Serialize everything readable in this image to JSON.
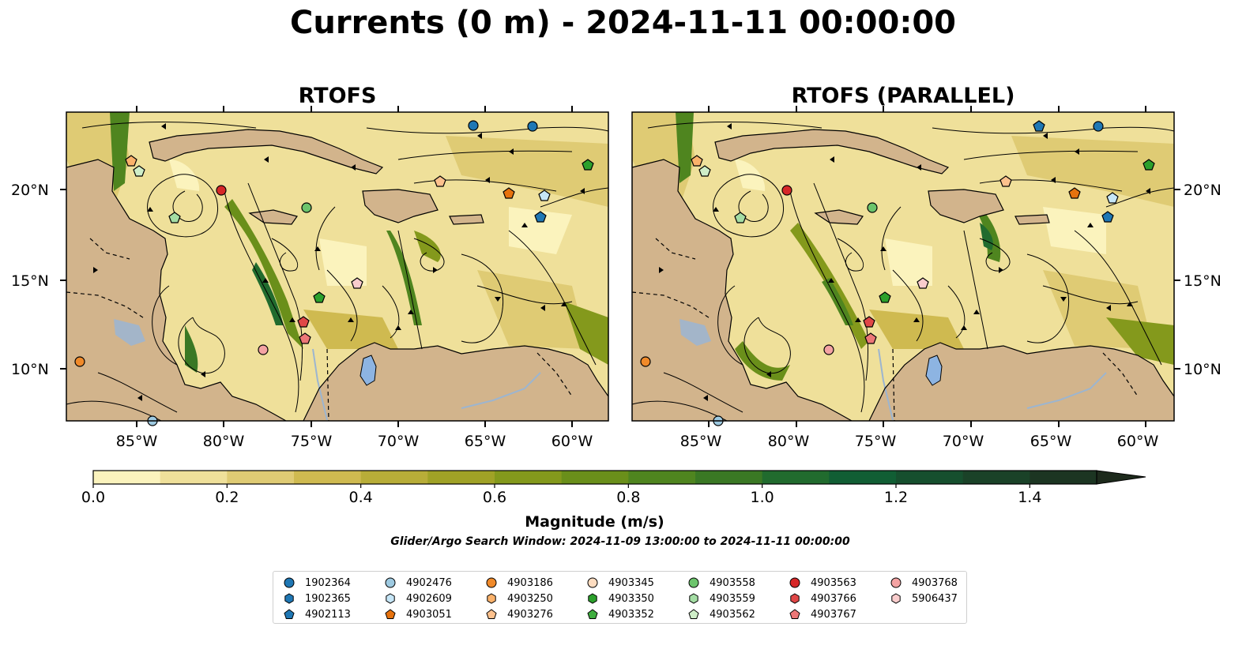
{
  "title": "Currents (0 m) - 2024-11-11 00:00:00",
  "panels": [
    {
      "title": "RTOFS"
    },
    {
      "title": "RTOFS (PARALLEL)"
    }
  ],
  "axes": {
    "lat_ticks": [
      "20°N",
      "15°N",
      "10°N"
    ],
    "lon_ticks": [
      "85°W",
      "80°W",
      "75°W",
      "70°W",
      "65°W",
      "60°W"
    ]
  },
  "colorbar": {
    "label": "Magnitude (m/s)",
    "ticks": [
      "0.0",
      "0.2",
      "0.4",
      "0.6",
      "0.8",
      "1.0",
      "1.2",
      "1.4"
    ],
    "range": [
      0.0,
      1.6
    ],
    "extend": "max",
    "colors": [
      "#fbf3bd",
      "#efe09a",
      "#dfcb74",
      "#cfba50",
      "#b8ad38",
      "#a0a226",
      "#84991c",
      "#6a8f1a",
      "#4f851f",
      "#3a7824",
      "#216b2e",
      "#115e34",
      "#164f2e",
      "#1a4228",
      "#1c3522",
      "#1d2a1c"
    ]
  },
  "search_window": "Glider/Argo Search Window: 2024-11-09 13:00:00 to 2024-11-11 00:00:00",
  "legend": {
    "columns": [
      [
        {
          "id": "1902364",
          "color": "#1f77b4",
          "marker": "circle"
        },
        {
          "id": "1902365",
          "color": "#1f77b4",
          "marker": "hexagon"
        },
        {
          "id": "4902113",
          "color": "#1f77b4",
          "marker": "pentagon"
        }
      ],
      [
        {
          "id": "4902476",
          "color": "#9ecae1",
          "marker": "circle"
        },
        {
          "id": "4902609",
          "color": "#c6e6f7",
          "marker": "hexagon"
        },
        {
          "id": "4903051",
          "color": "#e6720e",
          "marker": "pentagon"
        }
      ],
      [
        {
          "id": "4903186",
          "color": "#f08a2a",
          "marker": "circle"
        },
        {
          "id": "4903250",
          "color": "#fbb26b",
          "marker": "hexagon"
        },
        {
          "id": "4903276",
          "color": "#fdc18d",
          "marker": "pentagon"
        }
      ],
      [
        {
          "id": "4903345",
          "color": "#fddcc0",
          "marker": "circle"
        },
        {
          "id": "4903350",
          "color": "#2ca02c",
          "marker": "hexagon"
        },
        {
          "id": "4903352",
          "color": "#3fae3f",
          "marker": "pentagon"
        }
      ],
      [
        {
          "id": "4903558",
          "color": "#6cc46c",
          "marker": "circle"
        },
        {
          "id": "4903559",
          "color": "#a4dda4",
          "marker": "hexagon"
        },
        {
          "id": "4903562",
          "color": "#cfeec8",
          "marker": "pentagon"
        }
      ],
      [
        {
          "id": "4903563",
          "color": "#d62728",
          "marker": "circle"
        },
        {
          "id": "4903766",
          "color": "#e04747",
          "marker": "hexagon"
        },
        {
          "id": "4903767",
          "color": "#ec7777",
          "marker": "pentagon"
        }
      ],
      [
        {
          "id": "4903768",
          "color": "#f4a3a3",
          "marker": "circle"
        },
        {
          "id": "5906437",
          "color": "#f9cccc",
          "marker": "hexagon"
        }
      ]
    ]
  }
}
